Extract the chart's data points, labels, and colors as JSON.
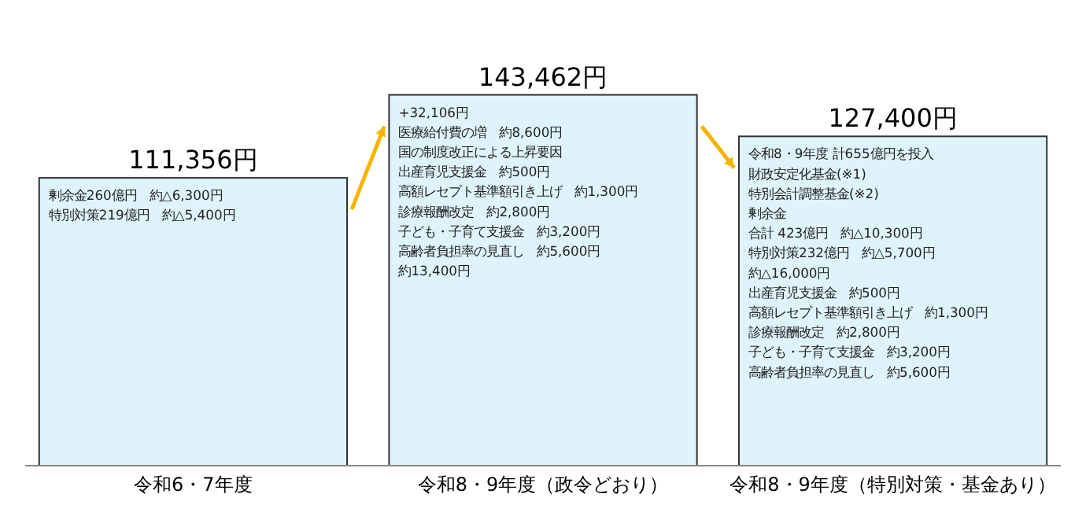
{
  "chart_data": {
    "type": "bar",
    "categories": [
      "令和6・7年度",
      "令和8・9年度（政令どおり）",
      "令和8・9年度（特別対策・基金あり）"
    ],
    "values": [
      111356,
      143462,
      127400
    ],
    "color": "#dff3fb",
    "value_labels": [
      "111,356円",
      "143,462円",
      "127,400円"
    ],
    "annotations": [
      "剰余金260億円　約△6,300円",
      "特別対策219億円　約△5,400円",
      "+32,106円",
      "医療給付費の増　約8,600円",
      "国の制度改正による上昇要因",
      "出産育児支援金　約500円",
      "高額レセプト基準額引き上げ　約1,300円",
      "診療報酬改定　約2,800円",
      "子ども・子育て支援金　約3,200円",
      "高齢者負担率の見直し　約5,600円",
      "約13,400円",
      "令和8・9年度 計655億円を投入",
      "財政安定化基金(※1)",
      "特別会計調整基金(※2)",
      "剰余金",
      "合計 423億円　約△10,300円",
      "特別対策232億円　約△5,700円",
      "約△16,000円",
      "出産育児支援金　約500円",
      "高額レセプト基準額引き上げ　約1,300円",
      "診療報酬改定　約2,800円",
      "子ども・子育て支援金　約3,200円",
      "高齢者負担率の見直し　約5,600円"
    ]
  }
}
